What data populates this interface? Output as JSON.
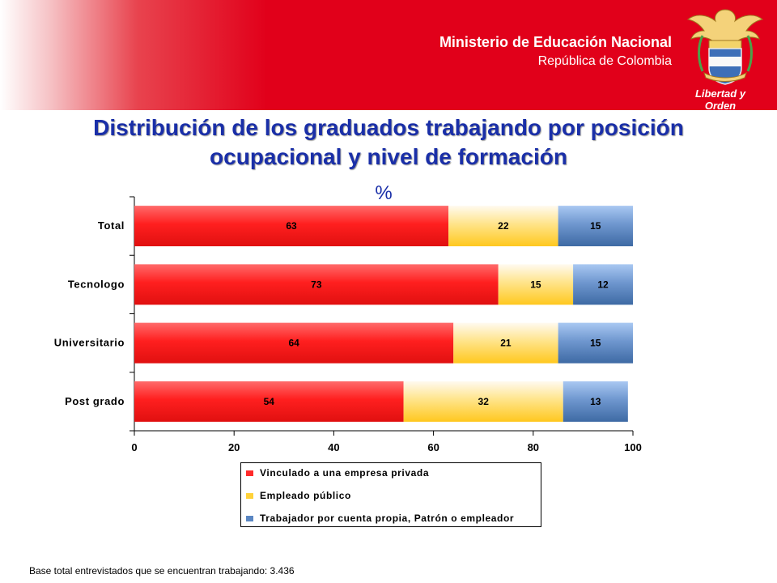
{
  "header": {
    "ministry": "Ministerio de Educación Nacional",
    "country": "República de Colombia",
    "motto": "Libertad y Orden"
  },
  "title_line1": "Distribución de los graduados trabajando por posición",
  "title_line2": "ocupacional y nivel de formación",
  "footnote": "Base total entrevistados que se encuentran trabajando: 3.436",
  "colors": {
    "header": "#e1001a",
    "title": "#1a2fa8",
    "series": [
      "#ff2a2a",
      "#ffd23a",
      "#5a86c2"
    ]
  },
  "chart_data": {
    "type": "bar",
    "orientation": "horizontal",
    "stacked": true,
    "unit_label": "%",
    "categories": [
      "Total",
      "Tecnologo",
      "Universitario",
      "Post grado"
    ],
    "series": [
      {
        "name": "Vinculado a una empresa privada",
        "values": [
          63,
          73,
          64,
          54
        ]
      },
      {
        "name": "Empleado público",
        "values": [
          22,
          15,
          21,
          32
        ]
      },
      {
        "name": "Trabajador por cuenta propia, Patrón o empleador",
        "values": [
          15,
          12,
          15,
          13
        ]
      }
    ],
    "xlim": [
      0,
      100
    ],
    "xticks": [
      0,
      20,
      40,
      60,
      80,
      100
    ],
    "grid": false,
    "legend_position": "bottom"
  }
}
